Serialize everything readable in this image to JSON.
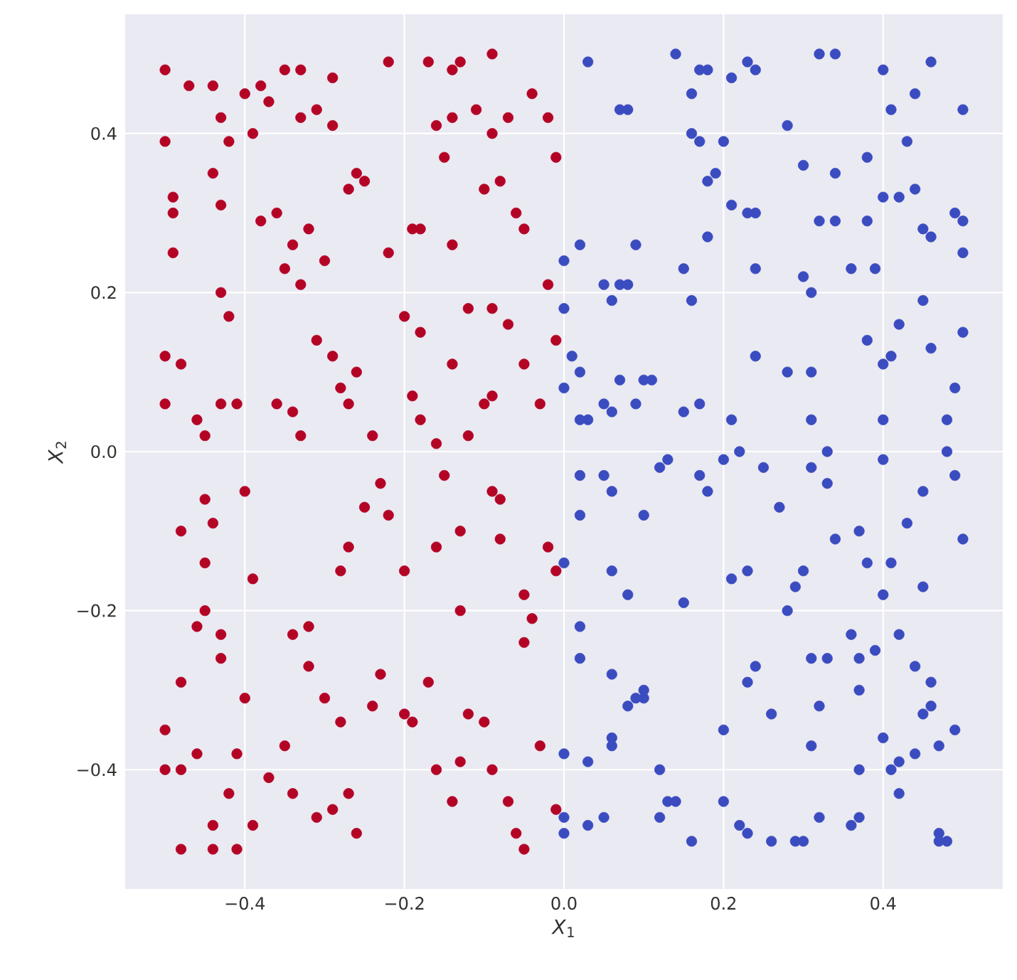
{
  "chart_data": {
    "type": "scatter",
    "xlabel": "*X*$_{1}$",
    "ylabel": "*X*$_{2}$",
    "xlim": [
      -0.55,
      0.55
    ],
    "ylim": [
      -0.55,
      0.55
    ],
    "xticks": [
      {
        "value": -0.4,
        "label": "−0.4"
      },
      {
        "value": -0.2,
        "label": "−0.2"
      },
      {
        "value": 0.0,
        "label": "0.0"
      },
      {
        "value": 0.2,
        "label": "0.2"
      },
      {
        "value": 0.4,
        "label": "0.4"
      }
    ],
    "yticks": [
      {
        "value": -0.4,
        "label": "−0.4"
      },
      {
        "value": -0.2,
        "label": "−0.2"
      },
      {
        "value": 0.0,
        "label": "0.0"
      },
      {
        "value": 0.2,
        "label": "0.2"
      },
      {
        "value": 0.4,
        "label": "0.4"
      }
    ],
    "grid": true,
    "marker": "circle",
    "series": [
      {
        "color": "#b40426",
        "x": [
          -0.5,
          -0.5,
          -0.49,
          -0.49,
          -0.49,
          -0.47,
          -0.44,
          -0.43,
          -0.42,
          -0.44,
          -0.43,
          -0.4,
          -0.39,
          -0.38,
          -0.37,
          -0.35,
          -0.33,
          -0.33,
          -0.29,
          -0.31,
          -0.29,
          -0.26,
          -0.22,
          -0.17,
          -0.14,
          -0.13,
          -0.09,
          -0.16,
          -0.14,
          -0.11,
          -0.07,
          -0.04,
          -0.02,
          -0.01,
          -0.09,
          -0.15,
          -0.43,
          -0.42,
          -0.38,
          -0.36,
          -0.35,
          -0.34,
          -0.32,
          -0.33,
          -0.3,
          -0.27,
          -0.25,
          -0.22,
          -0.19,
          -0.18,
          -0.14,
          -0.1,
          -0.08,
          -0.06,
          -0.05,
          -0.02,
          -0.12,
          -0.09,
          -0.07,
          -0.2,
          -0.18,
          -0.5,
          -0.48,
          -0.5,
          -0.46,
          -0.43,
          -0.45,
          -0.41,
          -0.4,
          -0.36,
          -0.34,
          -0.33,
          -0.31,
          -0.29,
          -0.28,
          -0.27,
          -0.26,
          -0.24,
          -0.23,
          -0.22,
          -0.19,
          -0.18,
          -0.16,
          -0.15,
          -0.14,
          -0.12,
          -0.1,
          -0.09,
          -0.08,
          -0.05,
          -0.03,
          -0.01,
          -0.48,
          -0.45,
          -0.44,
          -0.45,
          -0.45,
          -0.46,
          -0.43,
          -0.43,
          -0.39,
          -0.34,
          -0.32,
          -0.32,
          -0.28,
          -0.27,
          -0.25,
          -0.2,
          -0.16,
          -0.13,
          -0.13,
          -0.09,
          -0.08,
          -0.05,
          -0.04,
          -0.02,
          -0.01,
          -0.05,
          -0.48,
          -0.5,
          -0.5,
          -0.48,
          -0.48,
          -0.46,
          -0.44,
          -0.44,
          -0.42,
          -0.41,
          -0.39,
          -0.41,
          -0.4,
          -0.37,
          -0.35,
          -0.34,
          -0.31,
          -0.29,
          -0.3,
          -0.28,
          -0.27,
          -0.26,
          -0.24,
          -0.23,
          -0.2,
          -0.19,
          -0.17,
          -0.16,
          -0.14,
          -0.12,
          -0.1,
          -0.09,
          -0.07,
          -0.06,
          -0.05,
          -0.03,
          -0.01,
          -0.13
        ],
        "values": [
          0.48,
          0.39,
          0.32,
          0.3,
          0.25,
          0.46,
          0.46,
          0.42,
          0.39,
          0.35,
          0.31,
          0.45,
          0.4,
          0.46,
          0.44,
          0.48,
          0.48,
          0.42,
          0.47,
          0.43,
          0.41,
          0.35,
          0.49,
          0.49,
          0.48,
          0.49,
          0.5,
          0.41,
          0.42,
          0.43,
          0.42,
          0.45,
          0.42,
          0.37,
          0.4,
          0.37,
          0.2,
          0.17,
          0.29,
          0.3,
          0.23,
          0.26,
          0.28,
          0.21,
          0.24,
          0.33,
          0.34,
          0.25,
          0.28,
          0.28,
          0.26,
          0.33,
          0.34,
          0.3,
          0.28,
          0.21,
          0.18,
          0.18,
          0.16,
          0.17,
          0.15,
          0.12,
          0.11,
          0.06,
          0.04,
          0.06,
          0.02,
          0.06,
          -0.05,
          0.06,
          0.05,
          0.02,
          0.14,
          0.12,
          0.08,
          0.06,
          0.1,
          0.02,
          -0.04,
          -0.08,
          0.07,
          0.04,
          0.01,
          -0.03,
          0.11,
          0.02,
          0.06,
          0.07,
          -0.06,
          0.11,
          0.06,
          0.14,
          -0.1,
          -0.06,
          -0.09,
          -0.14,
          -0.2,
          -0.22,
          -0.23,
          -0.26,
          -0.16,
          -0.23,
          -0.22,
          -0.27,
          -0.15,
          -0.12,
          -0.07,
          -0.15,
          -0.12,
          -0.1,
          -0.2,
          -0.05,
          -0.11,
          -0.18,
          -0.21,
          -0.12,
          -0.15,
          -0.24,
          -0.29,
          -0.35,
          -0.4,
          -0.4,
          -0.5,
          -0.38,
          -0.47,
          -0.5,
          -0.43,
          -0.5,
          -0.47,
          -0.38,
          -0.31,
          -0.41,
          -0.37,
          -0.43,
          -0.46,
          -0.45,
          -0.31,
          -0.34,
          -0.43,
          -0.48,
          -0.32,
          -0.28,
          -0.33,
          -0.34,
          -0.29,
          -0.4,
          -0.44,
          -0.33,
          -0.34,
          -0.4,
          -0.44,
          -0.48,
          -0.5,
          -0.37,
          -0.45,
          -0.39
        ]
      },
      {
        "color": "#3b4cc0",
        "x": [
          0.03,
          0.07,
          0.08,
          0.14,
          0.16,
          0.17,
          0.18,
          0.21,
          0.23,
          0.24,
          0.28,
          0.32,
          0.34,
          0.4,
          0.41,
          0.44,
          0.46,
          0.5,
          0.43,
          0.16,
          0.17,
          0.2,
          0.18,
          0.19,
          0.21,
          0.23,
          0.24,
          0.3,
          0.34,
          0.38,
          0.4,
          0.42,
          0.44,
          0.45,
          0.46,
          0.49,
          0.5,
          0.5,
          0.32,
          0.34,
          0.38,
          0.18,
          0.15,
          0.24,
          0.3,
          0.31,
          0.36,
          0.39,
          0.0,
          0.02,
          0.05,
          0.07,
          0.08,
          0.06,
          0.09,
          0.16,
          0.0,
          0.01,
          0.0,
          0.02,
          0.03,
          0.05,
          0.06,
          0.07,
          0.09,
          0.1,
          0.11,
          0.15,
          0.17,
          0.24,
          0.21,
          0.22,
          0.28,
          0.31,
          0.31,
          0.33,
          0.33,
          0.38,
          0.4,
          0.41,
          0.42,
          0.45,
          0.46,
          0.48,
          0.49,
          0.5,
          0.48,
          0.4,
          0.02,
          0.02,
          0.02,
          0.05,
          0.06,
          0.1,
          0.12,
          0.13,
          0.17,
          0.18,
          0.2,
          0.25,
          0.27,
          0.31,
          0.34,
          0.37,
          0.38,
          0.41,
          0.43,
          0.45,
          0.49,
          0.5,
          0.4,
          0.0,
          0.02,
          0.02,
          0.06,
          0.08,
          0.06,
          0.1,
          0.09,
          0.15,
          0.21,
          0.23,
          0.24,
          0.23,
          0.28,
          0.29,
          0.3,
          0.31,
          0.33,
          0.36,
          0.37,
          0.39,
          0.4,
          0.42,
          0.45,
          0.44,
          0.46,
          0.46,
          0.49,
          0.0,
          0.03,
          0.06,
          0.06,
          0.0,
          0.0,
          0.03,
          0.05,
          0.08,
          0.1,
          0.12,
          0.12,
          0.13,
          0.14,
          0.16,
          0.2,
          0.2,
          0.22,
          0.23,
          0.26,
          0.26,
          0.29,
          0.3,
          0.31,
          0.32,
          0.32,
          0.36,
          0.37,
          0.37,
          0.37,
          0.41,
          0.42,
          0.42,
          0.44,
          0.47,
          0.47,
          0.47,
          0.48,
          0.4,
          0.45
        ],
        "values": [
          0.49,
          0.43,
          0.43,
          0.5,
          0.45,
          0.48,
          0.48,
          0.47,
          0.49,
          0.48,
          0.41,
          0.5,
          0.5,
          0.48,
          0.43,
          0.45,
          0.49,
          0.43,
          0.39,
          0.4,
          0.39,
          0.39,
          0.34,
          0.35,
          0.31,
          0.3,
          0.3,
          0.36,
          0.35,
          0.37,
          0.32,
          0.32,
          0.33,
          0.28,
          0.27,
          0.3,
          0.29,
          0.25,
          0.29,
          0.29,
          0.29,
          0.27,
          0.23,
          0.23,
          0.22,
          0.2,
          0.23,
          0.23,
          0.24,
          0.26,
          0.21,
          0.21,
          0.21,
          0.19,
          0.26,
          0.19,
          0.18,
          0.12,
          0.08,
          0.1,
          0.04,
          0.06,
          0.05,
          0.09,
          0.06,
          0.09,
          0.09,
          0.05,
          0.06,
          0.12,
          0.04,
          0.0,
          0.1,
          0.1,
          0.04,
          0.0,
          -0.04,
          0.14,
          0.11,
          0.12,
          0.16,
          0.19,
          0.13,
          0.04,
          0.08,
          0.15,
          0.0,
          0.04,
          0.04,
          -0.03,
          -0.08,
          -0.03,
          -0.05,
          -0.08,
          -0.02,
          -0.01,
          -0.03,
          -0.05,
          -0.01,
          -0.02,
          -0.07,
          -0.02,
          -0.11,
          -0.1,
          -0.14,
          -0.14,
          -0.09,
          -0.05,
          -0.03,
          -0.11,
          -0.01,
          -0.14,
          -0.22,
          -0.26,
          -0.15,
          -0.18,
          -0.28,
          -0.3,
          -0.31,
          -0.19,
          -0.16,
          -0.15,
          -0.27,
          -0.29,
          -0.2,
          -0.17,
          -0.15,
          -0.26,
          -0.26,
          -0.23,
          -0.26,
          -0.25,
          -0.18,
          -0.23,
          -0.17,
          -0.27,
          -0.29,
          -0.32,
          -0.35,
          -0.38,
          -0.39,
          -0.36,
          -0.37,
          -0.46,
          -0.48,
          -0.47,
          -0.46,
          -0.32,
          -0.31,
          -0.4,
          -0.46,
          -0.44,
          -0.44,
          -0.49,
          -0.35,
          -0.44,
          -0.47,
          -0.48,
          -0.49,
          -0.33,
          -0.49,
          -0.49,
          -0.37,
          -0.46,
          -0.32,
          -0.47,
          -0.46,
          -0.4,
          -0.3,
          -0.4,
          -0.39,
          -0.43,
          -0.38,
          -0.37,
          -0.48,
          -0.49,
          -0.49,
          -0.36,
          -0.33
        ]
      }
    ]
  }
}
